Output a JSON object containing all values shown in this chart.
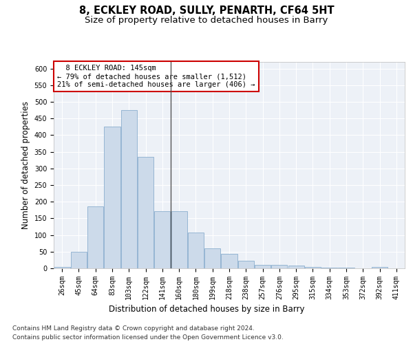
{
  "title_line1": "8, ECKLEY ROAD, SULLY, PENARTH, CF64 5HT",
  "title_line2": "Size of property relative to detached houses in Barry",
  "xlabel": "Distribution of detached houses by size in Barry",
  "ylabel": "Number of detached properties",
  "bar_labels": [
    "26sqm",
    "45sqm",
    "64sqm",
    "83sqm",
    "103sqm",
    "122sqm",
    "141sqm",
    "160sqm",
    "180sqm",
    "199sqm",
    "218sqm",
    "238sqm",
    "257sqm",
    "276sqm",
    "295sqm",
    "315sqm",
    "334sqm",
    "353sqm",
    "372sqm",
    "392sqm",
    "411sqm"
  ],
  "bar_values": [
    5,
    50,
    185,
    425,
    475,
    335,
    172,
    172,
    107,
    60,
    44,
    22,
    10,
    10,
    8,
    5,
    2,
    2,
    1,
    4,
    1
  ],
  "bar_color": "#ccdaea",
  "bar_edge_color": "#8aaece",
  "highlight_index": 6,
  "highlight_line_color": "#555555",
  "annotation_text": "  8 ECKLEY ROAD: 145sqm  \n← 79% of detached houses are smaller (1,512)\n21% of semi-detached houses are larger (406) →",
  "annotation_box_color": "#ffffff",
  "annotation_box_edge_color": "#cc0000",
  "ylim": [
    0,
    620
  ],
  "yticks": [
    0,
    50,
    100,
    150,
    200,
    250,
    300,
    350,
    400,
    450,
    500,
    550,
    600
  ],
  "background_color": "#edf1f7",
  "grid_color": "#ffffff",
  "footer_line1": "Contains HM Land Registry data © Crown copyright and database right 2024.",
  "footer_line2": "Contains public sector information licensed under the Open Government Licence v3.0.",
  "title_fontsize": 10.5,
  "subtitle_fontsize": 9.5,
  "axis_label_fontsize": 8.5,
  "tick_fontsize": 7,
  "annotation_fontsize": 7.5,
  "footer_fontsize": 6.5
}
